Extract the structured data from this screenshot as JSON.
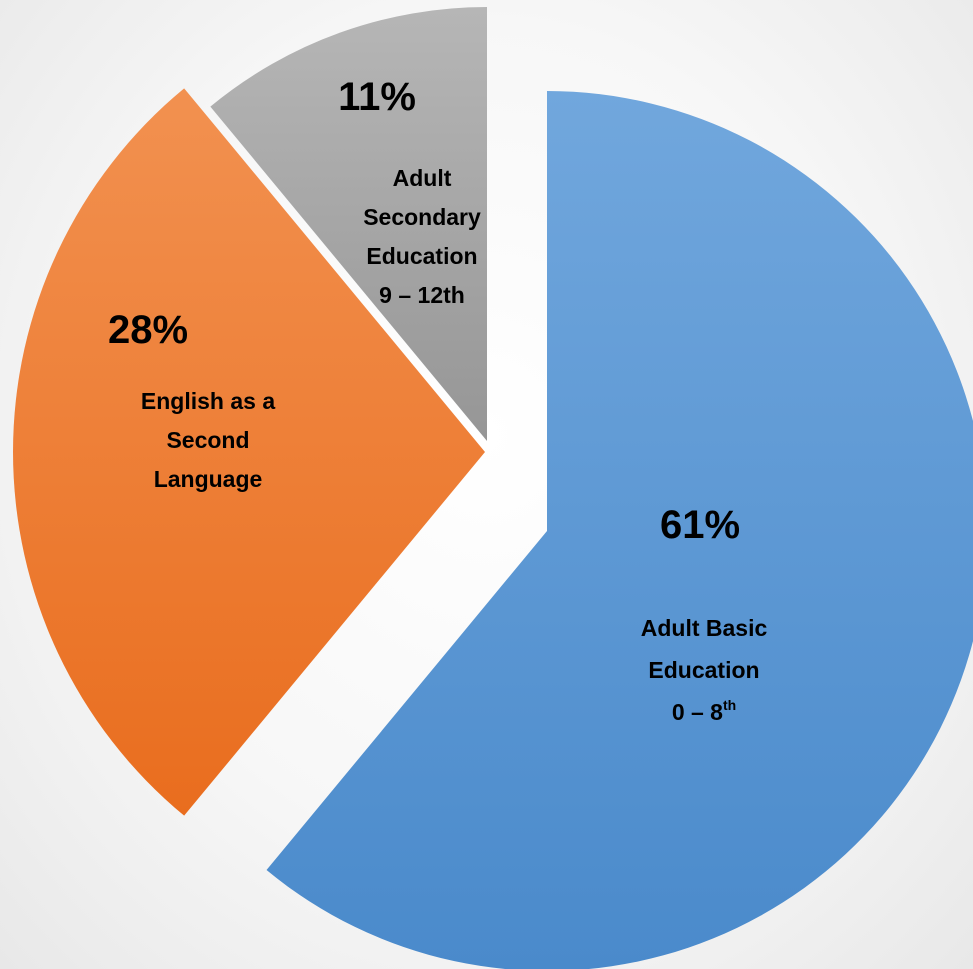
{
  "chart_data": {
    "type": "pie",
    "title": "",
    "slices": [
      {
        "name": "Adult Basic Education 0 – 8th",
        "value": 61,
        "label": "61%",
        "desc_lines": [
          "Adult Basic",
          "Education"
        ],
        "grade_main": "0 – 8",
        "grade_sup": "th",
        "color": "#5B9BD5",
        "color_light": "#71A7DD",
        "color_dark": "#4A8ACB"
      },
      {
        "name": "English as a Second Language",
        "value": 28,
        "label": "28%",
        "desc_lines": [
          "English as a",
          "Second",
          "Language"
        ],
        "color": "#ED7D31",
        "color_light": "#F29150",
        "color_dark": "#E96D1E"
      },
      {
        "name": "Adult Secondary Education 9 – 12th",
        "value": 11,
        "label": "11%",
        "desc_lines": [
          "Adult",
          "Secondary",
          "Education",
          "9 – 12th"
        ],
        "color": "#A5A5A5",
        "color_light": "#B6B6B6",
        "color_dark": "#969696"
      }
    ],
    "start_angle_deg": 0,
    "direction": "clockwise",
    "exploded": true,
    "legend": "none",
    "data_labels": "inside"
  }
}
